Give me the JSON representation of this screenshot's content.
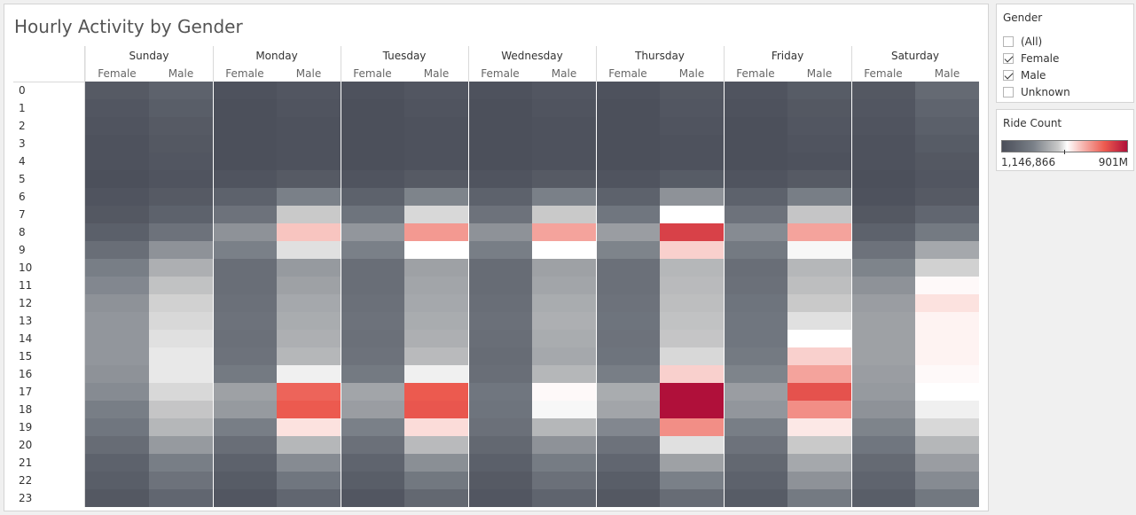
{
  "title": "Hourly Activity by Gender",
  "filter": {
    "title": "Gender",
    "items": [
      {
        "label": "(All)",
        "checked": false
      },
      {
        "label": "Female",
        "checked": true
      },
      {
        "label": "Male",
        "checked": true
      },
      {
        "label": "Unknown",
        "checked": false
      }
    ]
  },
  "legend": {
    "title": "Ride Count",
    "min_label": "1,146,866",
    "max_label": "901M",
    "colors": [
      "#4a4e59",
      "#7a8088",
      "#c9c9c9",
      "#ffffff",
      "#f6b3ad",
      "#ec5a4f",
      "#b0103a"
    ]
  },
  "chart_data": {
    "type": "heatmap",
    "title": "Hourly Activity by Gender",
    "columns": [
      "Sunday",
      "Monday",
      "Tuesday",
      "Wednesday",
      "Thursday",
      "Friday",
      "Saturday"
    ],
    "subcolumns": [
      "Female",
      "Male"
    ],
    "rows": [
      "0",
      "1",
      "2",
      "3",
      "4",
      "5",
      "6",
      "7",
      "8",
      "9",
      "10",
      "11",
      "12",
      "13",
      "14",
      "15",
      "16",
      "17",
      "18",
      "19",
      "20",
      "21",
      "22",
      "23"
    ],
    "value_scale": "relative intensity 0 (min, dark gray) to 1 (max, dark red); 0.52 = white",
    "values": {
      "Sunday": {
        "Female": [
          0.06,
          0.04,
          0.03,
          0.02,
          0.02,
          0.01,
          0.03,
          0.05,
          0.09,
          0.16,
          0.24,
          0.27,
          0.3,
          0.31,
          0.31,
          0.31,
          0.3,
          0.28,
          0.24,
          0.2,
          0.15,
          0.1,
          0.08,
          0.05
        ],
        "Male": [
          0.1,
          0.08,
          0.06,
          0.05,
          0.04,
          0.03,
          0.06,
          0.1,
          0.18,
          0.3,
          0.38,
          0.43,
          0.46,
          0.47,
          0.48,
          0.49,
          0.49,
          0.47,
          0.44,
          0.4,
          0.32,
          0.24,
          0.18,
          0.12
        ]
      },
      "Monday": {
        "Female": [
          0.02,
          0.01,
          0.01,
          0.01,
          0.01,
          0.03,
          0.1,
          0.18,
          0.3,
          0.25,
          0.16,
          0.16,
          0.17,
          0.18,
          0.17,
          0.18,
          0.22,
          0.34,
          0.32,
          0.24,
          0.16,
          0.1,
          0.07,
          0.04
        ],
        "Male": [
          0.04,
          0.03,
          0.02,
          0.02,
          0.02,
          0.06,
          0.25,
          0.45,
          0.62,
          0.48,
          0.32,
          0.34,
          0.36,
          0.37,
          0.38,
          0.4,
          0.5,
          0.8,
          0.82,
          0.57,
          0.4,
          0.28,
          0.2,
          0.12
        ]
      },
      "Tuesday": {
        "Female": [
          0.02,
          0.01,
          0.01,
          0.01,
          0.01,
          0.03,
          0.1,
          0.19,
          0.31,
          0.25,
          0.16,
          0.16,
          0.17,
          0.18,
          0.17,
          0.18,
          0.22,
          0.35,
          0.33,
          0.25,
          0.17,
          0.11,
          0.08,
          0.04
        ],
        "Male": [
          0.04,
          0.03,
          0.02,
          0.02,
          0.02,
          0.06,
          0.26,
          0.47,
          0.7,
          0.52,
          0.34,
          0.35,
          0.36,
          0.37,
          0.38,
          0.41,
          0.5,
          0.82,
          0.83,
          0.58,
          0.41,
          0.29,
          0.21,
          0.13
        ]
      },
      "Wednesday": {
        "Female": [
          0.02,
          0.01,
          0.01,
          0.01,
          0.01,
          0.03,
          0.1,
          0.18,
          0.3,
          0.24,
          0.15,
          0.15,
          0.16,
          0.17,
          0.16,
          0.15,
          0.16,
          0.2,
          0.19,
          0.17,
          0.13,
          0.09,
          0.06,
          0.04
        ],
        "Male": [
          0.04,
          0.03,
          0.02,
          0.02,
          0.02,
          0.06,
          0.25,
          0.45,
          0.68,
          0.52,
          0.34,
          0.35,
          0.37,
          0.38,
          0.37,
          0.36,
          0.4,
          0.53,
          0.51,
          0.4,
          0.3,
          0.23,
          0.17,
          0.11
        ]
      },
      "Thursday": {
        "Female": [
          0.02,
          0.01,
          0.01,
          0.01,
          0.01,
          0.03,
          0.1,
          0.2,
          0.33,
          0.26,
          0.17,
          0.17,
          0.18,
          0.19,
          0.18,
          0.19,
          0.24,
          0.37,
          0.35,
          0.27,
          0.18,
          0.12,
          0.08,
          0.05
        ],
        "Male": [
          0.05,
          0.04,
          0.03,
          0.02,
          0.02,
          0.07,
          0.3,
          0.52,
          0.88,
          0.6,
          0.4,
          0.41,
          0.42,
          0.43,
          0.44,
          0.47,
          0.6,
          1.0,
          1.0,
          0.72,
          0.48,
          0.34,
          0.25,
          0.15
        ]
      },
      "Friday": {
        "Female": [
          0.03,
          0.02,
          0.01,
          0.01,
          0.01,
          0.03,
          0.1,
          0.18,
          0.28,
          0.22,
          0.16,
          0.17,
          0.19,
          0.2,
          0.2,
          0.22,
          0.26,
          0.33,
          0.31,
          0.24,
          0.18,
          0.13,
          0.1,
          0.07
        ],
        "Male": [
          0.07,
          0.05,
          0.04,
          0.03,
          0.02,
          0.06,
          0.24,
          0.44,
          0.68,
          0.51,
          0.4,
          0.42,
          0.45,
          0.48,
          0.52,
          0.6,
          0.68,
          0.84,
          0.72,
          0.56,
          0.45,
          0.36,
          0.3,
          0.22
        ]
      },
      "Saturday": {
        "Female": [
          0.05,
          0.04,
          0.03,
          0.02,
          0.02,
          0.01,
          0.02,
          0.05,
          0.1,
          0.18,
          0.26,
          0.3,
          0.33,
          0.34,
          0.34,
          0.34,
          0.33,
          0.32,
          0.3,
          0.26,
          0.2,
          0.14,
          0.11,
          0.08
        ],
        "Male": [
          0.14,
          0.11,
          0.09,
          0.07,
          0.05,
          0.04,
          0.06,
          0.12,
          0.22,
          0.36,
          0.46,
          0.53,
          0.57,
          0.54,
          0.54,
          0.54,
          0.53,
          0.52,
          0.5,
          0.47,
          0.4,
          0.33,
          0.28,
          0.21
        ]
      }
    }
  }
}
